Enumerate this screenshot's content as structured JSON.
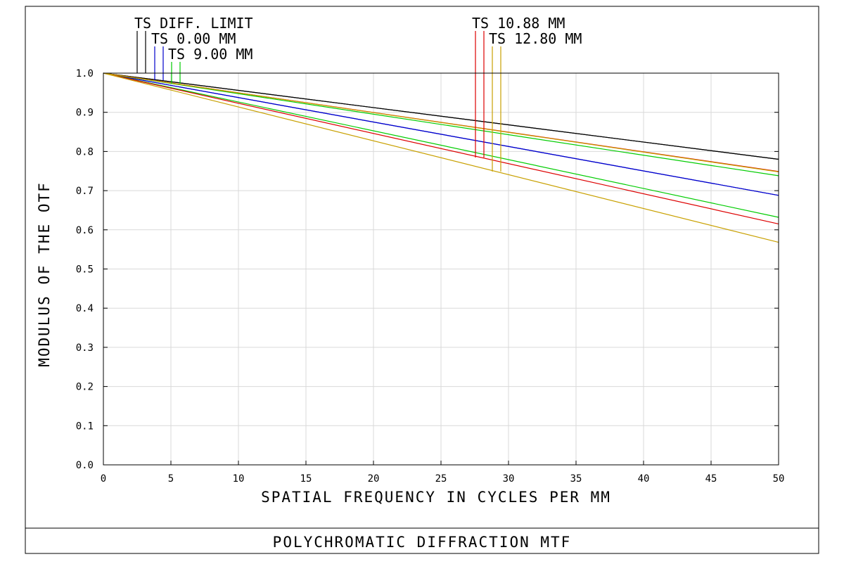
{
  "chart_data": {
    "type": "line",
    "title": "POLYCHROMATIC DIFFRACTION MTF",
    "xlabel": "SPATIAL FREQUENCY IN CYCLES PER MM",
    "ylabel": "MODULUS OF THE OTF",
    "xlim": [
      0,
      50
    ],
    "ylim": [
      0,
      1.0
    ],
    "xticks": [
      "0",
      "5",
      "10",
      "15",
      "20",
      "25",
      "30",
      "35",
      "40",
      "45",
      "50"
    ],
    "yticks": [
      "0.0",
      "0.1",
      "0.2",
      "0.3",
      "0.4",
      "0.5",
      "0.6",
      "0.7",
      "0.8",
      "0.9",
      "1.0"
    ],
    "grid": true,
    "legend": [
      {
        "label": "TS DIFF. LIMIT",
        "colors": [
          "#000000",
          "#000000"
        ]
      },
      {
        "label": "TS 0.00 MM",
        "colors": [
          "#0000cc",
          "#0000cc"
        ]
      },
      {
        "label": "TS 9.00 MM",
        "colors": [
          "#00cc00",
          "#00cc00"
        ]
      },
      {
        "label": "TS 10.88 MM",
        "colors": [
          "#dd0000",
          "#dd0000"
        ]
      },
      {
        "label": "TS 12.80 MM",
        "colors": [
          "#c8a000",
          "#c8a000"
        ]
      }
    ],
    "series": [
      {
        "color": "#000000",
        "x": [
          0,
          50
        ],
        "y": [
          1.0,
          0.78
        ]
      },
      {
        "color": "#000000",
        "x": [
          0,
          50
        ],
        "y": [
          1.0,
          0.78
        ]
      },
      {
        "color": "#0000cc",
        "x": [
          0,
          50
        ],
        "y": [
          1.0,
          0.688
        ]
      },
      {
        "color": "#0000cc",
        "x": [
          0,
          50
        ],
        "y": [
          1.0,
          0.688
        ]
      },
      {
        "color": "#00cc00",
        "x": [
          0,
          50
        ],
        "y": [
          1.0,
          0.738
        ]
      },
      {
        "color": "#00cc00",
        "x": [
          0,
          50
        ],
        "y": [
          1.0,
          0.632
        ]
      },
      {
        "color": "#dd0000",
        "x": [
          0,
          50
        ],
        "y": [
          1.0,
          0.749
        ]
      },
      {
        "color": "#dd0000",
        "x": [
          0,
          50
        ],
        "y": [
          1.0,
          0.615
        ]
      },
      {
        "color": "#c8a000",
        "x": [
          0,
          50
        ],
        "y": [
          1.0,
          0.748
        ]
      },
      {
        "color": "#c8a000",
        "x": [
          0,
          50
        ],
        "y": [
          1.0,
          0.568
        ]
      }
    ]
  }
}
